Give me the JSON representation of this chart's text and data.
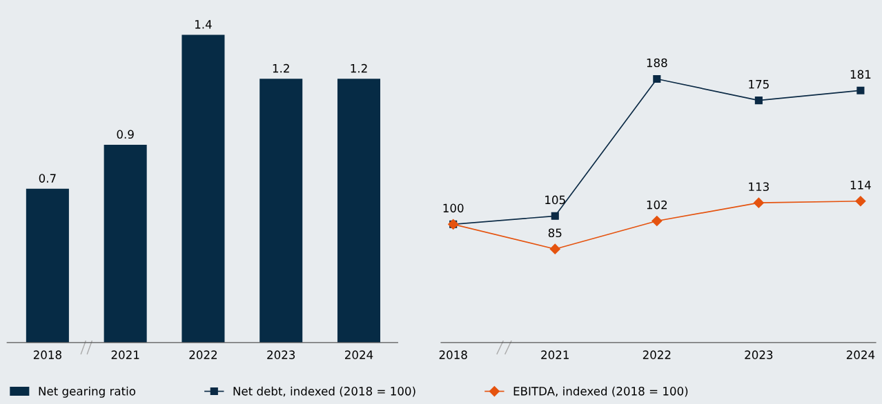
{
  "chart_data": [
    {
      "type": "bar",
      "categories": [
        "2018",
        "2021",
        "2022",
        "2023",
        "2024"
      ],
      "data_labels": true,
      "legend": "bottom",
      "series": [
        {
          "name": "Net gearing ratio",
          "color": "#062b45",
          "values": [
            0.7,
            0.9,
            1.4,
            1.2,
            1.2
          ]
        }
      ]
    },
    {
      "type": "line",
      "categories": [
        "2018",
        "2021",
        "2022",
        "2023",
        "2024"
      ],
      "legend": "bottom",
      "series": [
        {
          "name": "Net debt, indexed (2018 = 100)",
          "color": "#0b2a45",
          "marker": "square",
          "values": [
            100,
            105,
            188,
            175,
            181
          ],
          "value_labels": [
            "100",
            "105",
            "188",
            "175",
            "181"
          ]
        },
        {
          "name": "EBITDA, indexed (2018 = 100)",
          "color": "#e5530f",
          "marker": "diamond",
          "values": [
            100,
            85,
            102,
            113,
            114
          ],
          "value_labels": [
            null,
            "85",
            "102",
            "113",
            "114"
          ]
        }
      ]
    }
  ]
}
